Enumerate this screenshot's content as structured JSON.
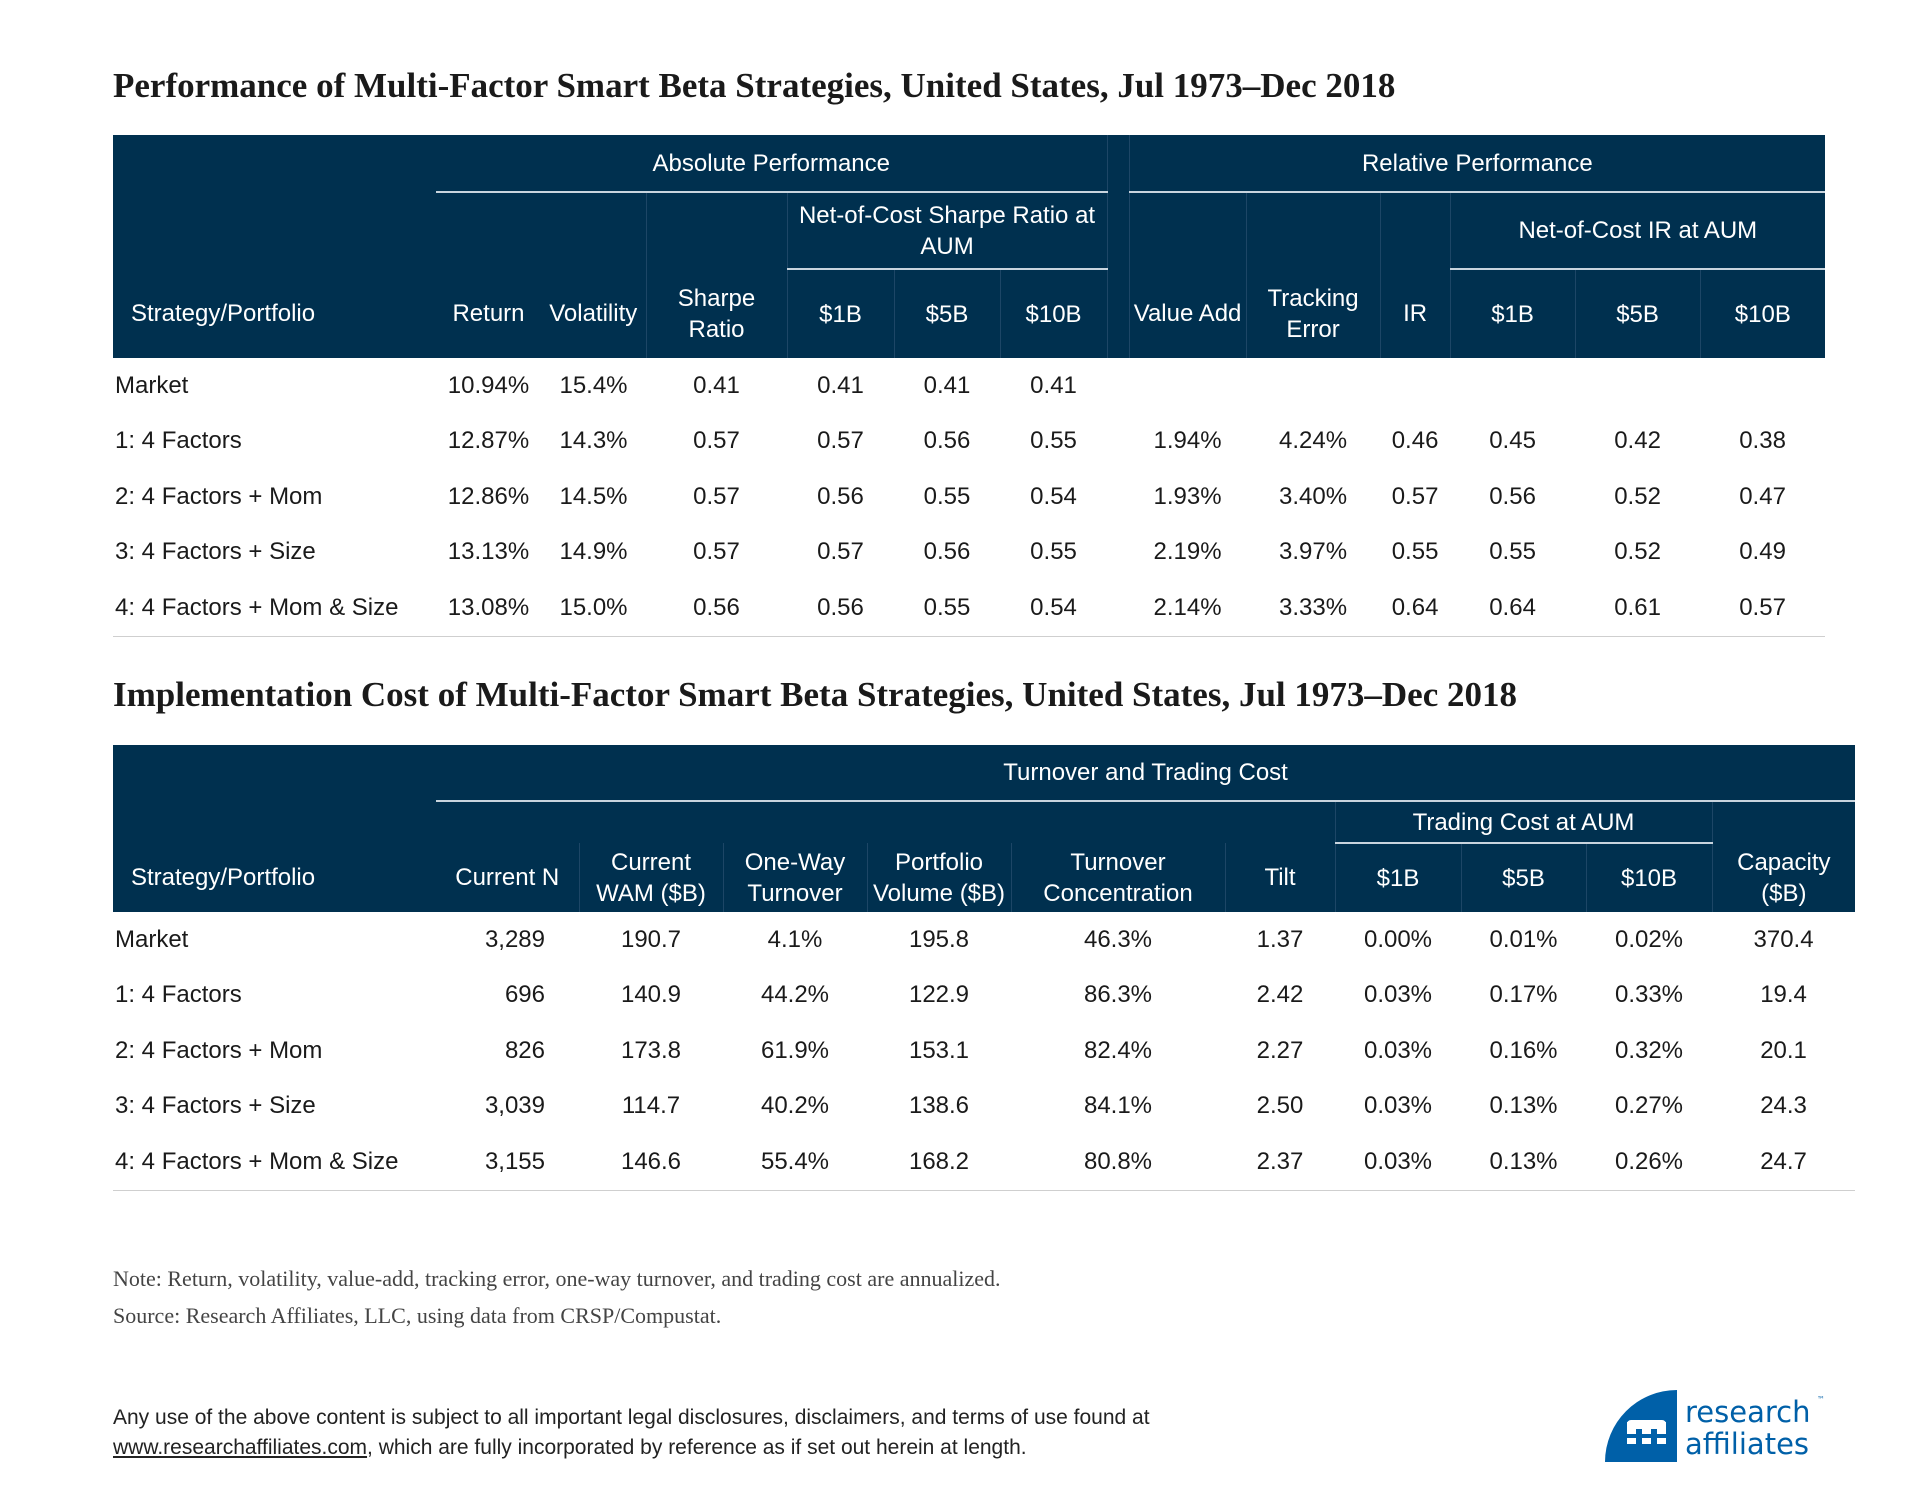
{
  "performance": {
    "title": "Performance of Multi-Factor Smart Beta Strategies, United States, Jul 1973–Dec 2018",
    "group_absolute": "Absolute Performance",
    "group_relative": "Relative Performance",
    "sub_sharpe_aum": "Net-of-Cost Sharpe Ratio at AUM",
    "sub_ir_aum": "Net-of-Cost IR at AUM",
    "columns": [
      "Strategy/Portfolio",
      "Return",
      "Volatility",
      "Sharpe Ratio",
      "$1B",
      "$5B",
      "$10B",
      "Value Add",
      "Tracking Error",
      "IR",
      "$1B",
      "$5B",
      "$10B"
    ],
    "rows": [
      [
        "Market",
        "10.94%",
        "15.4%",
        "0.41",
        "0.41",
        "0.41",
        "0.41",
        "",
        "",
        "",
        "",
        "",
        ""
      ],
      [
        "1: 4 Factors",
        "12.87%",
        "14.3%",
        "0.57",
        "0.57",
        "0.56",
        "0.55",
        "1.94%",
        "4.24%",
        "0.46",
        "0.45",
        "0.42",
        "0.38"
      ],
      [
        "2: 4 Factors + Mom",
        "12.86%",
        "14.5%",
        "0.57",
        "0.56",
        "0.55",
        "0.54",
        "1.93%",
        "3.40%",
        "0.57",
        "0.56",
        "0.52",
        "0.47"
      ],
      [
        "3: 4 Factors + Size",
        "13.13%",
        "14.9%",
        "0.57",
        "0.57",
        "0.56",
        "0.55",
        "2.19%",
        "3.97%",
        "0.55",
        "0.55",
        "0.52",
        "0.49"
      ],
      [
        "4: 4 Factors + Mom & Size",
        "13.08%",
        "15.0%",
        "0.56",
        "0.56",
        "0.55",
        "0.54",
        "2.14%",
        "3.33%",
        "0.64",
        "0.64",
        "0.61",
        "0.57"
      ]
    ]
  },
  "implementation": {
    "title": "Implementation Cost of Multi-Factor Smart Beta Strategies, United States, Jul 1973–Dec 2018",
    "group_turnover": "Turnover and Trading Cost",
    "sub_trading_cost": "Trading Cost at AUM",
    "columns": [
      "Strategy/Portfolio",
      "Current N",
      "Current WAM ($B)",
      "One-Way Turnover",
      "Portfolio Volume ($B)",
      "Turnover Concentration",
      "Tilt",
      "$1B",
      "$5B",
      "$10B",
      "Capacity ($B)"
    ],
    "rows": [
      [
        "Market",
        "3,289",
        "190.7",
        "4.1%",
        "195.8",
        "46.3%",
        "1.37",
        "0.00%",
        "0.01%",
        "0.02%",
        "370.4"
      ],
      [
        "1: 4 Factors",
        "696",
        "140.9",
        "44.2%",
        "122.9",
        "86.3%",
        "2.42",
        "0.03%",
        "0.17%",
        "0.33%",
        "19.4"
      ],
      [
        "2: 4 Factors + Mom",
        "826",
        "173.8",
        "61.9%",
        "153.1",
        "82.4%",
        "2.27",
        "0.03%",
        "0.16%",
        "0.32%",
        "20.1"
      ],
      [
        "3: 4 Factors + Size",
        "3,039",
        "114.7",
        "40.2%",
        "138.6",
        "84.1%",
        "2.50",
        "0.03%",
        "0.13%",
        "0.27%",
        "24.3"
      ],
      [
        "4: 4 Factors + Mom & Size",
        "3,155",
        "146.6",
        "55.4%",
        "168.2",
        "80.8%",
        "2.37",
        "0.03%",
        "0.13%",
        "0.26%",
        "24.7"
      ]
    ]
  },
  "notes": {
    "note": "Note: Return, volatility, value-add, tracking error, one-way turnover, and trading cost are annualized.",
    "source": "Source: Research Affiliates, LLC, using data from CRSP/Compustat."
  },
  "legal": {
    "line1": "Any use of the above content is subject to all important legal disclosures, disclaimers, and terms of use found at",
    "link": "www.researchaffiliates.com",
    "line2_rest": ", which are fully incorporated by reference as if set out herein at length."
  },
  "logo": {
    "text1": "research",
    "text2": "affiliates",
    "tm": "™",
    "color": "#0060a8"
  },
  "colors": {
    "header_bg": "#00304f"
  }
}
